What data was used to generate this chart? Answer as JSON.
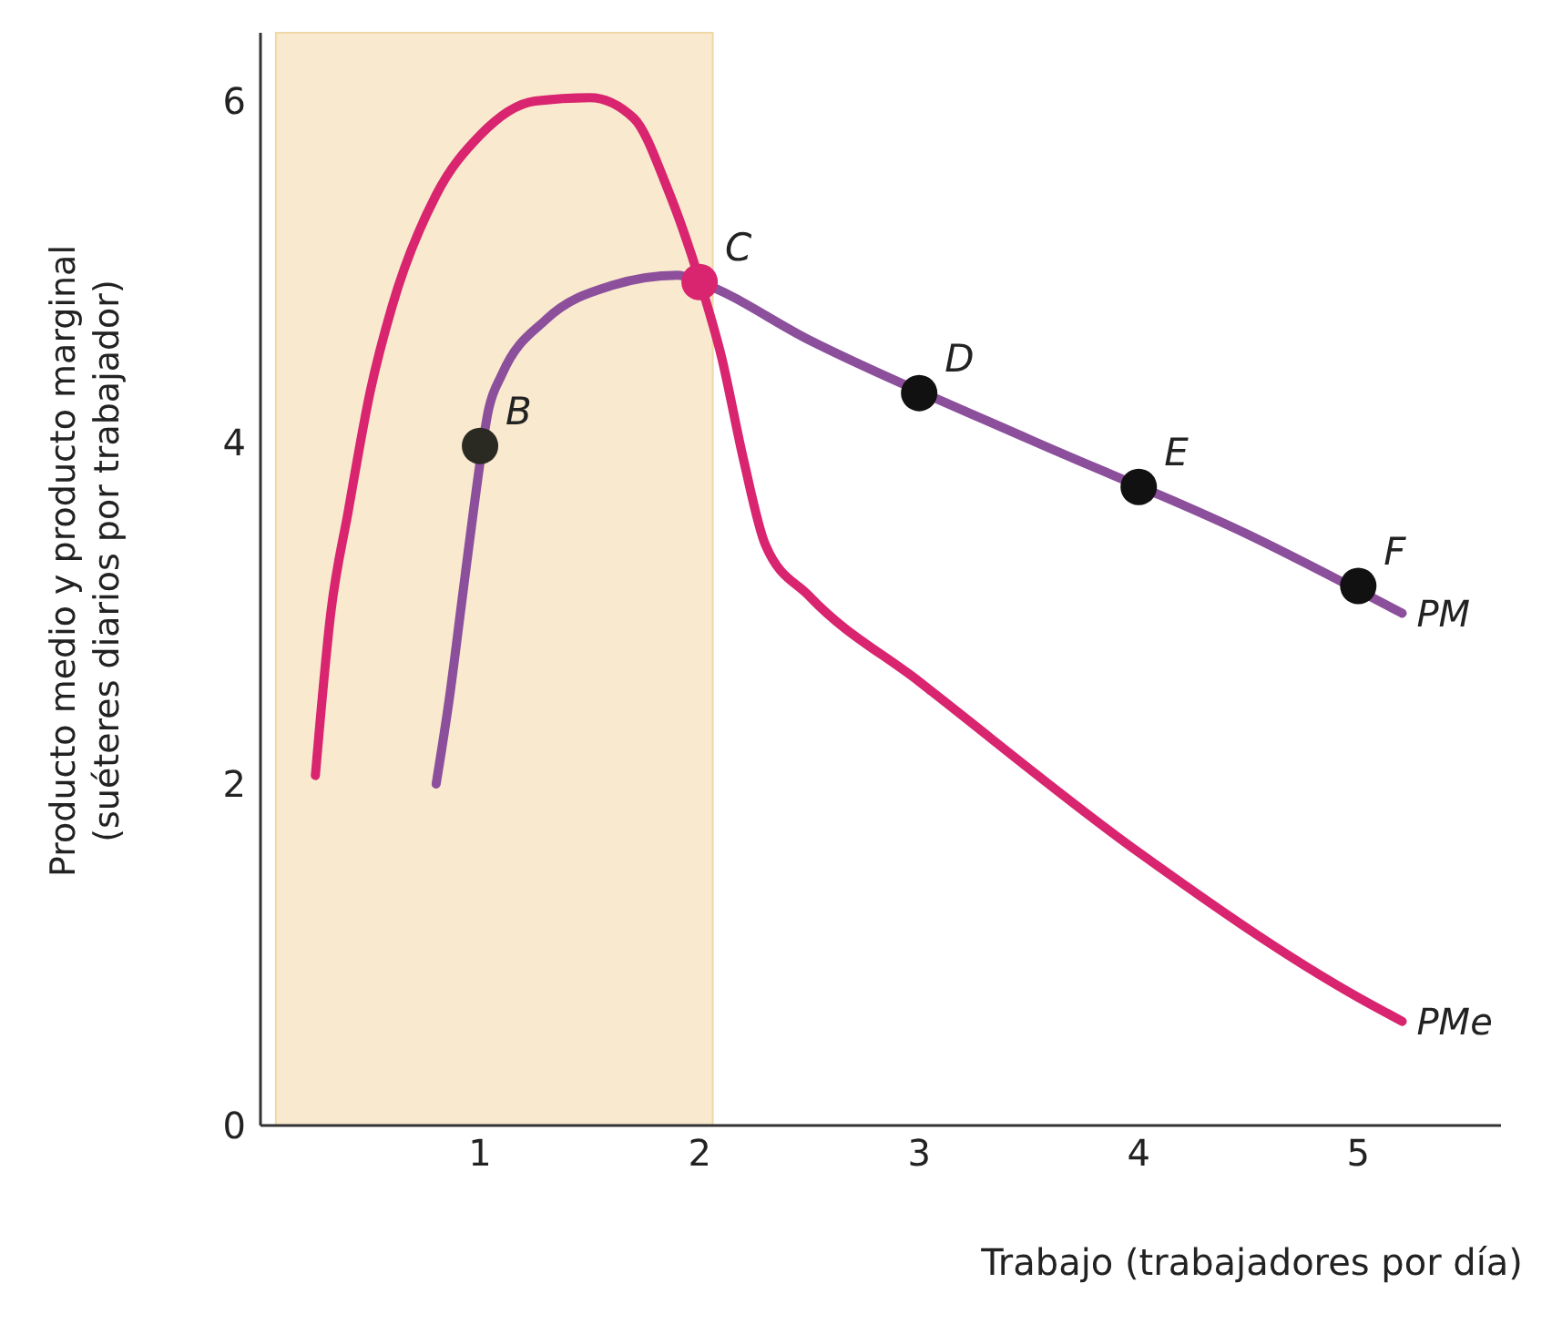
{
  "chart_data": {
    "type": "line",
    "xlabel": "Trabajo (trabajadores por día)",
    "ylabel": "Producto medio y producto marginal\n(suéteres diarios por trabajador)",
    "xlim": [
      0,
      5.65
    ],
    "xticks": [
      1,
      2,
      3,
      4,
      5
    ],
    "ylim": [
      0,
      6.4
    ],
    "yticks": [
      0,
      2,
      4,
      6
    ],
    "grid": false,
    "line_style": "solid",
    "bands": [
      {
        "axis": "x",
        "from": 0.07,
        "to": 2.06,
        "label": null,
        "color": "#f9e9cf"
      }
    ],
    "series": [
      {
        "name": "PMe",
        "color": "#d9246f",
        "x": [
          0.25,
          0.32,
          0.4,
          0.5,
          0.6,
          0.8,
          1.0,
          1.25,
          1.5,
          1.7,
          1.85,
          2.0,
          2.1,
          2.2,
          2.3,
          2.5,
          3,
          4,
          5,
          5.2
        ],
        "values": [
          2.05,
          3.0,
          3.6,
          4.3,
          4.8,
          5.45,
          5.8,
          6.0,
          6.02,
          5.9,
          5.5,
          4.95,
          4.5,
          3.9,
          3.4,
          3.1,
          2.6,
          1.6,
          0.75,
          0.61
        ]
      },
      {
        "name": "PM",
        "color": "#8c4f9c",
        "x": [
          0.8,
          0.86,
          0.92,
          0.97,
          1.04,
          1.1,
          1.3,
          1.6,
          1.9,
          2.0,
          2.5,
          3.5,
          4.5,
          5.2
        ],
        "values": [
          2.0,
          2.5,
          3.1,
          3.6,
          4.2,
          4.4,
          4.72,
          4.92,
          4.98,
          4.94,
          4.6,
          4.02,
          3.46,
          3.0
        ]
      },
      {
        "type": "scatter",
        "x": [
          1,
          2,
          3,
          4,
          5
        ],
        "values": [
          3.98,
          4.94,
          4.29,
          3.74,
          3.16
        ],
        "colors": [
          "#2a2a22",
          "#d9246f",
          "#111111",
          "#111111",
          "#111111"
        ]
      }
    ],
    "annotations": [
      {
        "text": "B",
        "x": 1,
        "y": 3.98
      },
      {
        "text": "C",
        "x": 2,
        "y": 4.94
      },
      {
        "text": "D",
        "x": 3,
        "y": 4.29
      },
      {
        "text": "E",
        "x": 4,
        "y": 3.74
      },
      {
        "text": "F",
        "x": 5,
        "y": 3.16
      }
    ]
  }
}
